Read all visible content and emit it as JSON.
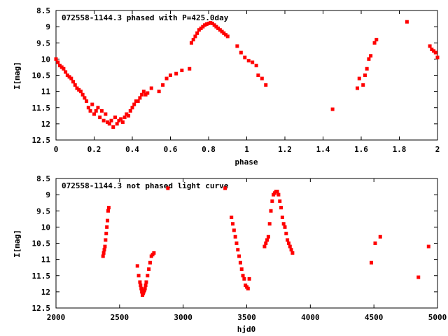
{
  "chart_data": [
    {
      "type": "scatter",
      "title": "072558-1144.3 phased with P=425.0day",
      "xlabel": "phase",
      "ylabel": "I[mag]",
      "xlim": [
        0,
        2
      ],
      "ylim": [
        12.5,
        8.5
      ],
      "y_inverted": true,
      "xticks": [
        "0",
        "0.2",
        "0.4",
        "0.6",
        "0.8",
        "1",
        "1.2",
        "1.4",
        "1.6",
        "1.8",
        "2"
      ],
      "yticks": [
        "8.5",
        "9",
        "9.5",
        "10",
        "10.5",
        "11",
        "11.5",
        "12",
        "12.5"
      ],
      "grid": false,
      "marker_color": "#ff0000",
      "series": [
        {
          "x": [
            0.0,
            0.01,
            0.02,
            0.03,
            0.04,
            0.05,
            0.06,
            0.07,
            0.08,
            0.09,
            0.1,
            0.11,
            0.12,
            0.13,
            0.14,
            0.15,
            0.16,
            0.17,
            0.18,
            0.19,
            0.2,
            0.21,
            0.22,
            0.23,
            0.24,
            0.25,
            0.26,
            0.27,
            0.28,
            0.29,
            0.3,
            0.31,
            0.32,
            0.33,
            0.34,
            0.35,
            0.36,
            0.37,
            0.38,
            0.39,
            0.4,
            0.41,
            0.42,
            0.43,
            0.44,
            0.45,
            0.46,
            0.47,
            0.48,
            0.5,
            0.54,
            0.56,
            0.58,
            0.6,
            0.63,
            0.66,
            0.7,
            0.71,
            0.72,
            0.73,
            0.74,
            0.75,
            0.76,
            0.77,
            0.78,
            0.79,
            0.8,
            0.81,
            0.82,
            0.83,
            0.84,
            0.85,
            0.86,
            0.87,
            0.88,
            0.89,
            0.9,
            0.95,
            0.97,
            0.99,
            1.01,
            1.03,
            1.05,
            1.06,
            1.08,
            1.1,
            1.45,
            1.58,
            1.59,
            1.61,
            1.62,
            1.63,
            1.64,
            1.65,
            1.67,
            1.68,
            1.84,
            1.96,
            1.97,
            1.98,
            1.99,
            2.0
          ],
          "y": [
            10.0,
            10.1,
            10.2,
            10.25,
            10.3,
            10.4,
            10.5,
            10.55,
            10.6,
            10.7,
            10.8,
            10.9,
            10.95,
            11.0,
            11.1,
            11.2,
            11.3,
            11.5,
            11.6,
            11.4,
            11.7,
            11.6,
            11.5,
            11.8,
            11.6,
            11.9,
            11.7,
            11.95,
            12.0,
            11.9,
            12.1,
            11.8,
            12.0,
            11.9,
            11.85,
            11.95,
            11.8,
            11.7,
            11.75,
            11.6,
            11.5,
            11.4,
            11.3,
            11.3,
            11.2,
            11.1,
            11.0,
            11.1,
            11.05,
            10.9,
            11.0,
            10.8,
            10.6,
            10.5,
            10.45,
            10.35,
            10.3,
            9.5,
            9.4,
            9.3,
            9.2,
            9.1,
            9.05,
            9.0,
            8.95,
            8.92,
            8.9,
            8.88,
            8.9,
            8.95,
            9.0,
            9.05,
            9.1,
            9.15,
            9.2,
            9.25,
            9.3,
            9.6,
            9.8,
            9.95,
            10.05,
            10.1,
            10.2,
            10.5,
            10.6,
            10.8,
            11.55,
            10.9,
            10.6,
            10.8,
            10.5,
            10.3,
            10.0,
            9.9,
            9.5,
            9.4,
            8.85,
            9.6,
            9.7,
            9.75,
            9.8,
            9.95
          ]
        }
      ]
    },
    {
      "type": "scatter",
      "title": "072558-1144.3 not phased light curve",
      "xlabel": "hjd0",
      "ylabel": "I[mag]",
      "xlim": [
        2000,
        5000
      ],
      "ylim": [
        12.5,
        8.5
      ],
      "y_inverted": true,
      "xticks": [
        "2000",
        "2500",
        "3000",
        "3500",
        "4000",
        "4500",
        "5000"
      ],
      "yticks": [
        "8.5",
        "9",
        "9.5",
        "10",
        "10.5",
        "11",
        "11.5",
        "12",
        "12.5"
      ],
      "grid": false,
      "marker_color": "#ff0000",
      "series": [
        {
          "x": [
            2370,
            2375,
            2380,
            2385,
            2390,
            2395,
            2400,
            2405,
            2410,
            2415,
            2640,
            2650,
            2660,
            2665,
            2670,
            2675,
            2680,
            2685,
            2690,
            2695,
            2700,
            2705,
            2710,
            2720,
            2730,
            2740,
            2750,
            2760,
            2770,
            2880,
            3330,
            3380,
            3390,
            3400,
            3410,
            3420,
            3430,
            3440,
            3450,
            3460,
            3470,
            3480,
            3490,
            3500,
            3510,
            3520,
            3640,
            3650,
            3660,
            3670,
            3680,
            3690,
            3700,
            3710,
            3720,
            3730,
            3740,
            3750,
            3760,
            3770,
            3780,
            3790,
            3800,
            3810,
            3820,
            3830,
            3840,
            3850,
            3860,
            4480,
            4510,
            4550,
            4850,
            4930
          ],
          "y": [
            10.9,
            10.8,
            10.7,
            10.6,
            10.4,
            10.2,
            10.0,
            9.8,
            9.5,
            9.4,
            11.2,
            11.5,
            11.7,
            11.8,
            11.9,
            12.0,
            12.1,
            12.05,
            12.0,
            11.95,
            11.9,
            11.8,
            11.7,
            11.5,
            11.3,
            11.1,
            10.9,
            10.85,
            10.8,
            8.8,
            8.8,
            9.7,
            9.9,
            10.1,
            10.3,
            10.5,
            10.7,
            10.9,
            11.1,
            11.3,
            11.5,
            11.6,
            11.8,
            11.85,
            11.9,
            11.6,
            10.6,
            10.5,
            10.4,
            10.3,
            9.9,
            9.5,
            9.2,
            9.0,
            8.95,
            8.9,
            8.9,
            9.0,
            9.2,
            9.4,
            9.7,
            9.9,
            10.0,
            10.2,
            10.4,
            10.5,
            10.6,
            10.7,
            10.8,
            11.1,
            10.5,
            10.3,
            11.55,
            10.6
          ]
        }
      ]
    }
  ]
}
